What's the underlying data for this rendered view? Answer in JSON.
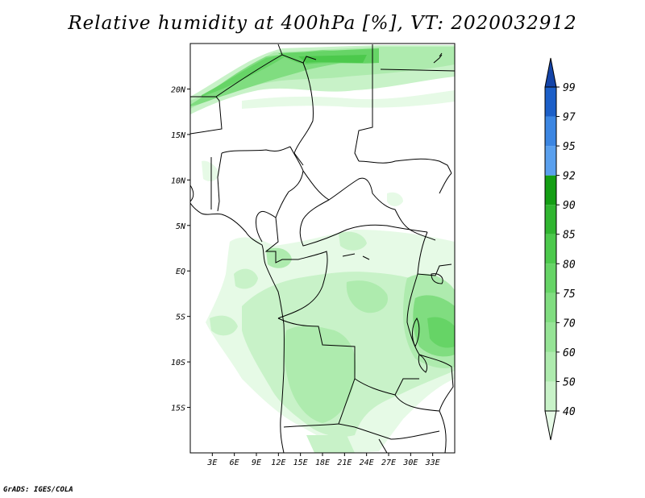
{
  "title": "Relative humidity at 400hPa [%], VT: 2020032912",
  "credit": "GrADS: IGES/COLA",
  "map": {
    "lon_range": [
      0,
      36
    ],
    "lat_range": [
      -20,
      25
    ],
    "lat_ticks": [
      {
        "value": 20,
        "label": "20N"
      },
      {
        "value": 15,
        "label": "15N"
      },
      {
        "value": 10,
        "label": "10N"
      },
      {
        "value": 5,
        "label": "5N"
      },
      {
        "value": 0,
        "label": "EQ"
      },
      {
        "value": -5,
        "label": "5S"
      },
      {
        "value": -10,
        "label": "10S"
      },
      {
        "value": -15,
        "label": "15S"
      }
    ],
    "lon_ticks": [
      {
        "value": 3,
        "label": "3E"
      },
      {
        "value": 6,
        "label": "6E"
      },
      {
        "value": 9,
        "label": "9E"
      },
      {
        "value": 12,
        "label": "12E"
      },
      {
        "value": 15,
        "label": "15E"
      },
      {
        "value": 18,
        "label": "18E"
      },
      {
        "value": 21,
        "label": "21E"
      },
      {
        "value": 24,
        "label": "24E"
      },
      {
        "value": 27,
        "label": "27E"
      },
      {
        "value": 30,
        "label": "30E"
      },
      {
        "value": 33,
        "label": "33E"
      }
    ]
  },
  "colorbar": {
    "levels": [
      "40",
      "50",
      "60",
      "70",
      "75",
      "80",
      "85",
      "90",
      "92",
      "95",
      "97",
      "99"
    ],
    "colors": [
      "#e6fae6",
      "#c8f2c8",
      "#aeebae",
      "#96e496",
      "#80dd80",
      "#66d466",
      "#4cc94c",
      "#30b530",
      "#149e14",
      "#5aa0ee",
      "#3c86e2",
      "#1c5fc8",
      "#1444a8"
    ]
  }
}
